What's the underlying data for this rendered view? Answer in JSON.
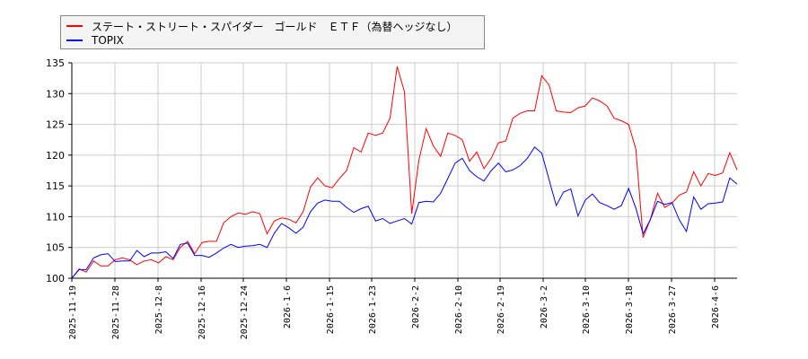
{
  "legend": {
    "items": [
      {
        "label": "ステート・ストリート・スパイダー　ゴールド　ＥＴＦ（為替ヘッジなし）",
        "color": "#ff0000"
      },
      {
        "label": "TOPIX",
        "color": "#0000ff"
      }
    ]
  },
  "chart_data": {
    "type": "line",
    "title": "",
    "xlabel": "",
    "ylabel": "",
    "ylim": [
      100,
      135
    ],
    "yticks": [
      100,
      105,
      110,
      115,
      120,
      125,
      130,
      135
    ],
    "grid": true,
    "legend_position": "top-left",
    "xtick_labels": [
      "2025-11-19",
      "2025-11-28",
      "2025-12-8",
      "2025-12-16",
      "2025-12-24",
      "2026-1-6",
      "2026-1-15",
      "2026-1-23",
      "2026-2-2",
      "2026-2-10",
      "2026-2-19",
      "2026-3-2",
      "2026-3-10",
      "2026-3-18",
      "2026-3-27",
      "2026-4-6"
    ],
    "series": [
      {
        "name": "ステート・ストリート・スパイダー　ゴールド　ＥＴＦ（為替ヘッジなし）",
        "color": "#ff0000",
        "values": [
          100.0,
          101.5,
          101.0,
          102.8,
          102.0,
          102.0,
          103.0,
          103.3,
          103.0,
          102.2,
          102.8,
          103.0,
          102.5,
          103.5,
          103.0,
          105.0,
          106.0,
          104.0,
          105.8,
          106.0,
          106.0,
          109.0,
          110.0,
          110.6,
          110.4,
          110.8,
          110.5,
          107.2,
          109.3,
          109.8,
          109.6,
          109.0,
          110.8,
          114.8,
          116.3,
          115.0,
          114.7,
          116.2,
          117.5,
          121.2,
          120.5,
          123.6,
          123.2,
          123.6,
          126.0,
          134.4,
          130.3,
          110.5,
          119.2,
          124.3,
          121.5,
          119.8,
          123.6,
          123.2,
          122.5,
          119.0,
          120.5,
          117.8,
          119.5,
          122.0,
          122.3,
          126.0,
          126.8,
          127.2,
          127.2,
          132.9,
          131.4,
          127.2,
          127.0,
          126.9,
          127.7,
          128.0,
          129.3,
          128.8,
          128.0,
          126.0,
          125.6,
          125.0,
          121.0,
          106.6,
          109.5,
          113.8,
          111.5,
          112.2,
          113.5,
          114.0,
          117.3,
          115.0,
          117.0,
          116.7,
          117.1,
          120.4,
          117.6
        ]
      },
      {
        "name": "TOPIX",
        "color": "#0000ff",
        "values": [
          100.0,
          101.4,
          101.4,
          103.3,
          103.8,
          104.0,
          102.7,
          102.8,
          102.8,
          104.5,
          103.5,
          104.1,
          104.1,
          104.3,
          103.2,
          105.5,
          105.7,
          103.7,
          103.7,
          103.4,
          104.1,
          104.9,
          105.5,
          105.0,
          105.2,
          105.3,
          105.5,
          105.0,
          107.3,
          108.9,
          108.2,
          107.3,
          108.3,
          110.8,
          112.2,
          112.7,
          112.5,
          112.5,
          111.5,
          110.7,
          111.3,
          111.7,
          109.3,
          109.7,
          108.9,
          109.3,
          109.7,
          108.8,
          112.3,
          112.5,
          112.4,
          113.8,
          116.2,
          118.7,
          119.5,
          117.5,
          116.5,
          115.8,
          117.5,
          118.7,
          117.3,
          117.6,
          118.3,
          119.5,
          121.3,
          120.3,
          116.0,
          111.8,
          114.0,
          114.5,
          110.1,
          112.7,
          113.7,
          112.3,
          111.8,
          111.2,
          111.8,
          114.6,
          111.4,
          107.2,
          109.5,
          112.5,
          112.0,
          112.3,
          109.5,
          107.6,
          113.2,
          111.2,
          112.1,
          112.2,
          112.4,
          116.3,
          115.3
        ]
      }
    ]
  }
}
